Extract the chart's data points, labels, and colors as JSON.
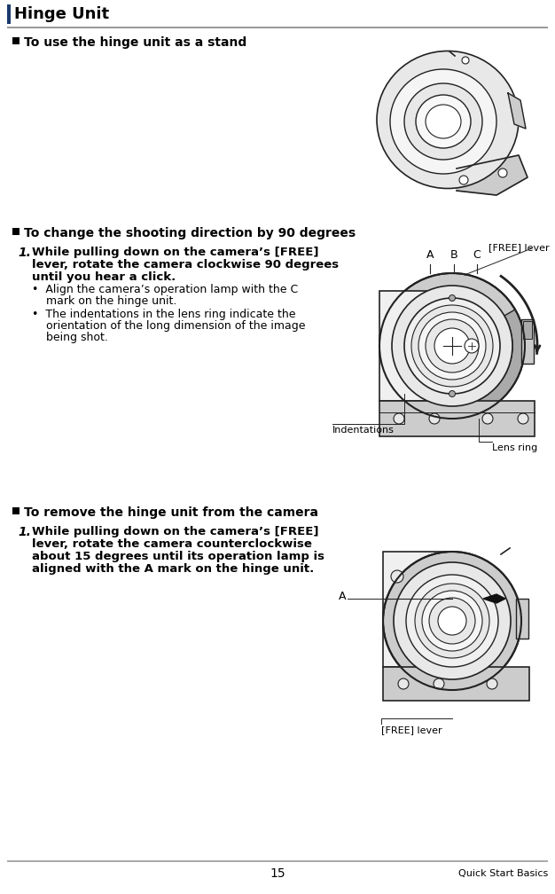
{
  "page_bg": "#ffffff",
  "header_title": "Hinge Unit",
  "section1_heading": "To use the hinge unit as a stand",
  "section2_heading": "To change the shooting direction by 90 degrees",
  "section3_heading": "To remove the hinge unit from the camera",
  "step1_text_lines": [
    "While pulling down on the camera’s [FREE]",
    "lever, rotate the camera clockwise 90 degrees",
    "until you hear a click."
  ],
  "bullet1_lines": [
    "Align the camera’s operation lamp with the C",
    "mark on the hinge unit."
  ],
  "bullet2_lines": [
    "The indentations in the lens ring indicate the",
    "orientation of the long dimension of the image",
    "being shot."
  ],
  "step2_text_lines": [
    "While pulling down on the camera’s [FREE]",
    "lever, rotate the camera counterclockwise",
    "about 15 degrees until its operation lamp is",
    "aligned with the A mark on the hinge unit."
  ],
  "label_free_lever_top": "[FREE] lever",
  "label_abc_a": "A",
  "label_abc_b": "B",
  "label_abc_c": "C",
  "label_indentations": "Indentations",
  "label_lens_ring": "Lens ring",
  "label_free_lever_bottom": "[FREE] lever",
  "label_a_bottom": "A",
  "footer_page": "15",
  "footer_right": "Quick Start Basics",
  "text_color": "#000000",
  "gray_line": "#aaaaaa",
  "diagram_edge": "#222222",
  "diagram_fill_light": "#e8e8e8",
  "diagram_fill_mid": "#cccccc",
  "diagram_fill_dark": "#aaaaaa",
  "diagram_fill_white": "#ffffff"
}
